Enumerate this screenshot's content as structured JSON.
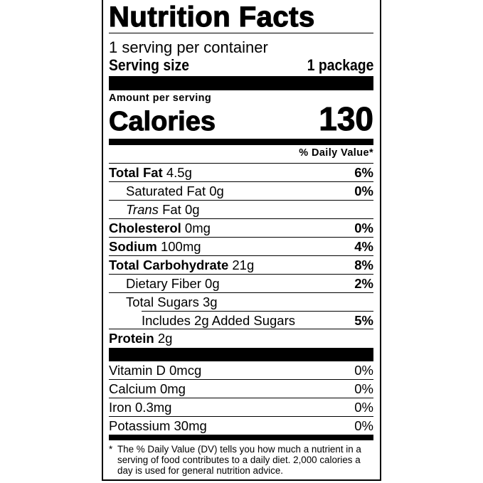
{
  "title": "Nutrition Facts",
  "servings_per_container": "1 serving per container",
  "serving_size_label": "Serving size",
  "serving_size_value": "1 package",
  "amount_per_serving": "Amount per serving",
  "calories_label": "Calories",
  "calories_value": "130",
  "daily_value_header": "% Daily Value*",
  "nutrients": [
    {
      "name": "Total Fat",
      "amount": "4.5g",
      "dv": "6%"
    },
    {
      "name": "Saturated Fat",
      "amount": "0g",
      "dv": "0%"
    },
    {
      "name": "Trans",
      "name_suffix": "Fat",
      "amount": "0g",
      "dv": ""
    },
    {
      "name": "Cholesterol",
      "amount": "0mg",
      "dv": "0%"
    },
    {
      "name": "Sodium",
      "amount": "100mg",
      "dv": "4%"
    },
    {
      "name": "Total Carbohydrate",
      "amount": "21g",
      "dv": "8%"
    },
    {
      "name": "Dietary Fiber",
      "amount": "0g",
      "dv": "2%"
    },
    {
      "name": "Total Sugars",
      "amount": "3g",
      "dv": ""
    },
    {
      "name": "Includes 2g Added Sugars",
      "amount": "",
      "dv": "5%"
    },
    {
      "name": "Protein",
      "amount": "2g",
      "dv": ""
    }
  ],
  "vitamins": [
    {
      "text": "Vitamin D 0mcg",
      "dv": "0%"
    },
    {
      "text": "Calcium 0mg",
      "dv": "0%"
    },
    {
      "text": "Iron 0.3mg",
      "dv": "0%"
    },
    {
      "text": "Potassium 30mg",
      "dv": "0%"
    }
  ],
  "footnote_marker": "*",
  "footnote": "The % Daily Value (DV) tells you how much a nutrient in a serving of food contributes to a daily diet. 2,000 calories a day is used for general nutrition advice."
}
